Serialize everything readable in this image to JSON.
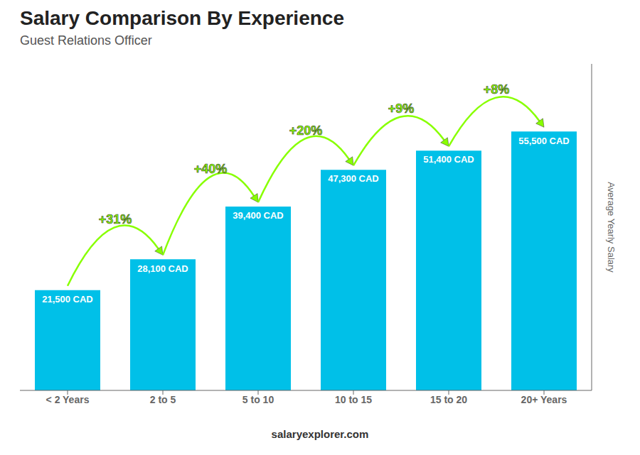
{
  "chart_data": {
    "type": "bar",
    "title": "Salary Comparison By Experience",
    "subtitle": "Guest Relations Officer",
    "ylabel": "Average Yearly Salary",
    "categories": [
      "< 2 Years",
      "2 to 5",
      "5 to 10",
      "10 to 15",
      "15 to 20",
      "20+ Years"
    ],
    "values": [
      21500,
      28100,
      39400,
      47300,
      51400,
      55500
    ],
    "value_labels": [
      "21,500 CAD",
      "28,100 CAD",
      "39,400 CAD",
      "47,300 CAD",
      "51,400 CAD",
      "55,500 CAD"
    ],
    "data_labels": true,
    "color": "#00c0e8",
    "ylim": [
      0,
      70000
    ],
    "tick_labels": "x",
    "grid": false,
    "annotations": [
      {
        "text": "+31%",
        "from": "< 2 Years",
        "to": "2 to 5",
        "color": "#88ff00"
      },
      {
        "text": "+40%",
        "from": "2 to 5",
        "to": "5 to 10",
        "color": "#88ff00"
      },
      {
        "text": "+20%",
        "from": "5 to 10",
        "to": "10 to 15",
        "color": "#88ff00"
      },
      {
        "text": "+9%",
        "from": "10 to 15",
        "to": "15 to 20",
        "color": "#88ff00"
      },
      {
        "text": "+8%",
        "from": "15 to 20",
        "to": "20+ Years",
        "color": "#88ff00"
      }
    ],
    "footer": "salaryexplorer.com"
  }
}
